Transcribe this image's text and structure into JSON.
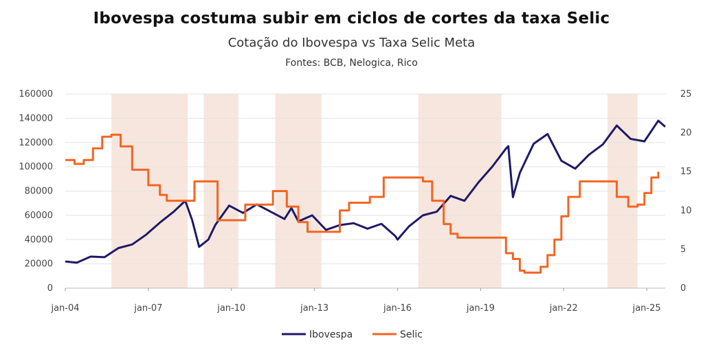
{
  "chart_data": {
    "type": "line",
    "title": "Ibovespa costuma subir em ciclos de cortes da taxa Selic",
    "subtitle": "Cotação do Ibovespa vs Taxa Selic Meta",
    "source": "Fontes: BCB, Nelogica, Rico",
    "xlim": [
      "2004-01",
      "2025-09"
    ],
    "x_ticks": [
      "jan-04",
      "jan-07",
      "jan-10",
      "jan-13",
      "jan-16",
      "jan-19",
      "jan-22",
      "jan-25"
    ],
    "x_tick_dates": [
      "2004-01",
      "2007-01",
      "2010-01",
      "2013-01",
      "2016-01",
      "2019-01",
      "2022-01",
      "2025-01"
    ],
    "y_left": {
      "min": 0,
      "max": 160000,
      "ticks": [
        "0",
        "20000",
        "40000",
        "60000",
        "80000",
        "100000",
        "120000",
        "140000",
        "160000"
      ]
    },
    "y_right": {
      "min": 0,
      "max": 25,
      "ticks": [
        "0",
        "5",
        "10",
        "15",
        "20",
        "25"
      ]
    },
    "legend_position": "bottom-center",
    "cut_cycle_periods": [
      [
        "2005-09",
        "2008-06"
      ],
      [
        "2009-01",
        "2010-04"
      ],
      [
        "2011-08",
        "2013-04"
      ],
      [
        "2016-10",
        "2019-10"
      ],
      [
        "2023-08",
        "2024-09"
      ]
    ],
    "series": [
      {
        "name": "Ibovespa",
        "axis": "left",
        "color": "#1e1a66",
        "x": [
          "2004-01",
          "2004-06",
          "2004-12",
          "2005-06",
          "2005-12",
          "2006-06",
          "2006-12",
          "2007-06",
          "2007-12",
          "2008-05",
          "2008-08",
          "2008-11",
          "2009-03",
          "2009-06",
          "2009-12",
          "2010-06",
          "2010-12",
          "2011-06",
          "2011-12",
          "2012-03",
          "2012-06",
          "2012-12",
          "2013-06",
          "2013-12",
          "2014-06",
          "2014-12",
          "2015-06",
          "2015-12",
          "2016-01",
          "2016-06",
          "2016-12",
          "2017-06",
          "2017-12",
          "2018-06",
          "2018-12",
          "2019-06",
          "2019-12",
          "2020-01",
          "2020-03",
          "2020-06",
          "2020-12",
          "2021-06",
          "2021-12",
          "2022-06",
          "2022-12",
          "2023-06",
          "2023-12",
          "2024-06",
          "2024-12",
          "2025-06",
          "2025-09"
        ],
        "values": [
          22000,
          21000,
          26000,
          25500,
          33000,
          36000,
          44000,
          54000,
          63000,
          72000,
          56000,
          34000,
          40000,
          52000,
          68000,
          62000,
          69000,
          63000,
          57000,
          66000,
          55000,
          60000,
          48000,
          52000,
          53500,
          49000,
          53000,
          43000,
          40000,
          51000,
          60000,
          63000,
          76000,
          72000,
          87000,
          100000,
          115000,
          117000,
          75000,
          95000,
          119000,
          127000,
          105000,
          98500,
          110000,
          118500,
          134000,
          123000,
          121000,
          138000,
          133000
        ]
      },
      {
        "name": "Selic",
        "axis": "right",
        "color": "#f26522",
        "x": [
          "2004-01",
          "2004-05",
          "2004-09",
          "2005-01",
          "2005-05",
          "2005-09",
          "2006-01",
          "2006-06",
          "2007-01",
          "2007-06",
          "2007-09",
          "2008-04",
          "2008-09",
          "2009-01",
          "2009-07",
          "2010-04",
          "2010-07",
          "2011-01",
          "2011-07",
          "2011-08",
          "2012-01",
          "2012-06",
          "2012-10",
          "2013-04",
          "2013-12",
          "2014-04",
          "2014-10",
          "2015-01",
          "2015-07",
          "2016-10",
          "2016-12",
          "2017-04",
          "2017-09",
          "2017-12",
          "2018-03",
          "2019-08",
          "2019-12",
          "2020-03",
          "2020-06",
          "2020-08",
          "2021-03",
          "2021-06",
          "2021-09",
          "2021-12",
          "2022-03",
          "2022-08",
          "2023-08",
          "2023-12",
          "2024-05",
          "2024-09",
          "2024-12",
          "2025-03",
          "2025-06"
        ],
        "values": [
          16.5,
          16.0,
          16.5,
          18.0,
          19.5,
          19.75,
          18.25,
          15.25,
          13.25,
          12.0,
          11.25,
          11.25,
          13.75,
          13.75,
          8.75,
          8.75,
          10.75,
          10.75,
          12.5,
          12.5,
          10.5,
          8.5,
          7.25,
          7.25,
          10.0,
          11.0,
          11.0,
          11.75,
          14.25,
          14.25,
          13.75,
          11.25,
          8.25,
          7.0,
          6.5,
          6.5,
          4.5,
          3.75,
          2.25,
          2.0,
          2.75,
          4.25,
          6.25,
          9.25,
          11.75,
          13.75,
          13.75,
          11.75,
          10.5,
          10.75,
          12.25,
          14.25,
          15.0
        ]
      }
    ]
  }
}
